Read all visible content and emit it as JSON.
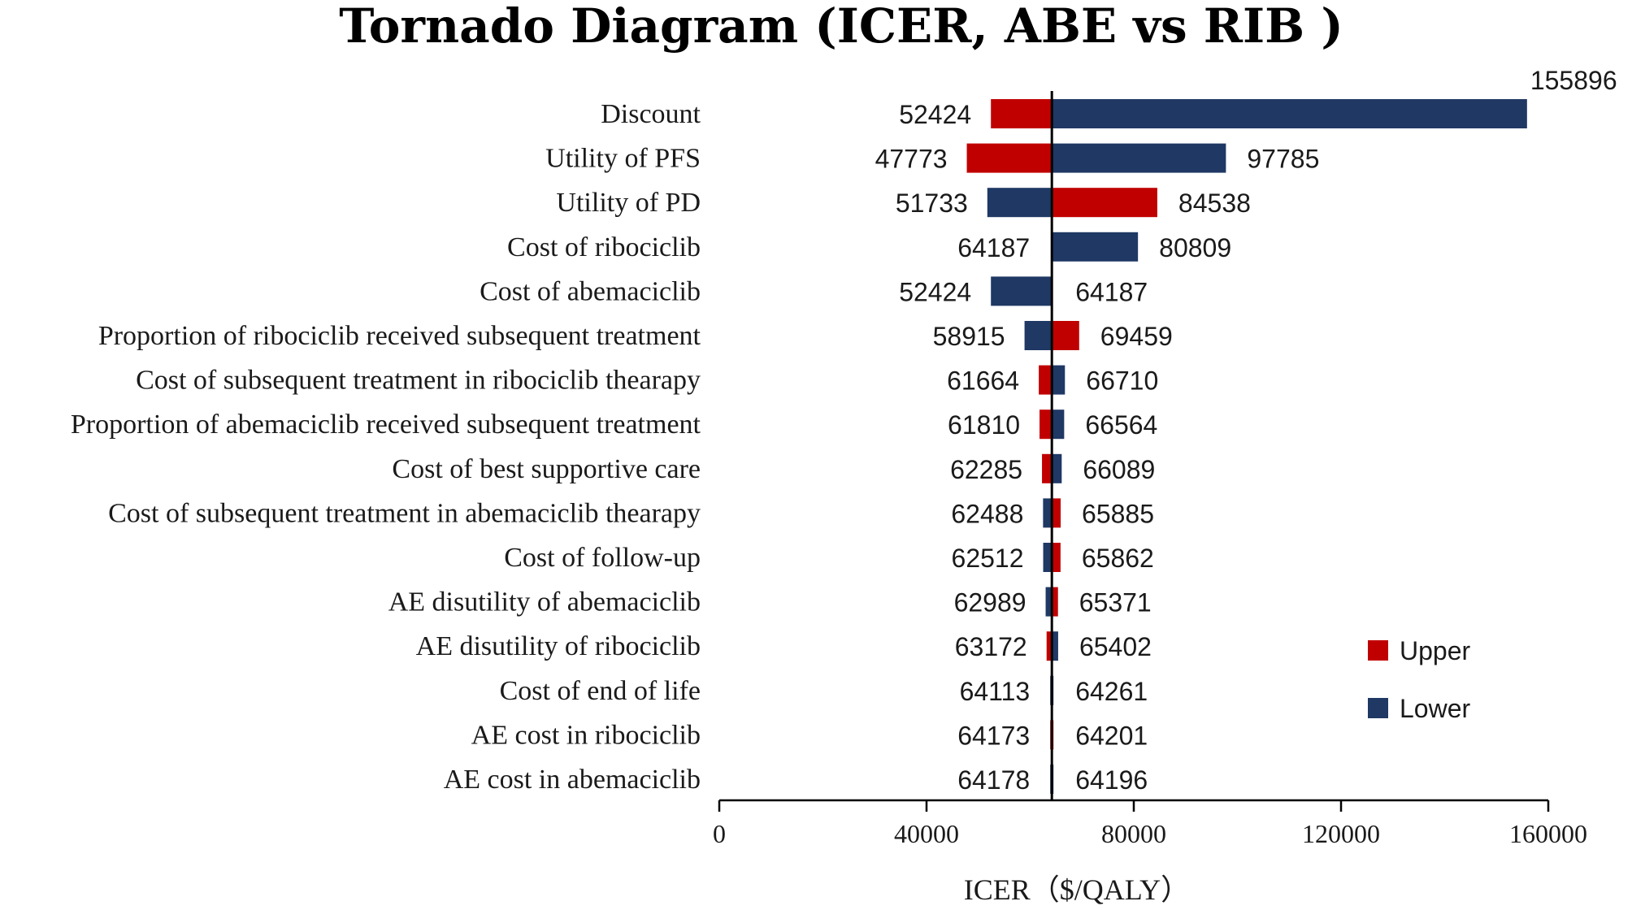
{
  "chart_data": {
    "type": "tornado",
    "title": "Tornado Diagram (ICER,  ABE vs RIB )",
    "xlabel": "ICER（$/QALY）",
    "ylabel": "",
    "xlim": [
      0,
      160000
    ],
    "xticks": [
      "0",
      "40000",
      "80000",
      "120000",
      "160000"
    ],
    "xtick_values": [
      0,
      40000,
      80000,
      120000,
      160000
    ],
    "base_value": 64187,
    "legend": {
      "position": "right",
      "entries": [
        {
          "key": "upper",
          "label": "Upper",
          "color": "#c00000"
        },
        {
          "key": "lower",
          "label": "Lower",
          "color": "#1f3864"
        }
      ]
    },
    "rows": [
      {
        "parameter": "Discount",
        "left": 52424,
        "right": 155896,
        "left_series": "upper",
        "right_series": "lower"
      },
      {
        "parameter": "Utility of PFS",
        "left": 47773,
        "right": 97785,
        "left_series": "upper",
        "right_series": "lower"
      },
      {
        "parameter": "Utility of PD",
        "left": 51733,
        "right": 84538,
        "left_series": "lower",
        "right_series": "upper"
      },
      {
        "parameter": "Cost of ribociclib",
        "left": 64187,
        "right": 80809,
        "left_series": "upper",
        "right_series": "lower"
      },
      {
        "parameter": "Cost of abemaciclib",
        "left": 52424,
        "right": 64187,
        "left_series": "lower",
        "right_series": "upper"
      },
      {
        "parameter": "Proportion of ribociclib received subsequent treatment",
        "left": 58915,
        "right": 69459,
        "left_series": "lower",
        "right_series": "upper"
      },
      {
        "parameter": "Cost of subsequent treatment in ribociclib thearapy",
        "left": 61664,
        "right": 66710,
        "left_series": "upper",
        "right_series": "lower"
      },
      {
        "parameter": "Proportion of abemaciclib received subsequent treatment",
        "left": 61810,
        "right": 66564,
        "left_series": "upper",
        "right_series": "lower"
      },
      {
        "parameter": "Cost of best supportive care",
        "left": 62285,
        "right": 66089,
        "left_series": "upper",
        "right_series": "lower"
      },
      {
        "parameter": "Cost of subsequent treatment in abemaciclib thearapy",
        "left": 62488,
        "right": 65885,
        "left_series": "lower",
        "right_series": "upper"
      },
      {
        "parameter": "Cost of follow-up",
        "left": 62512,
        "right": 65862,
        "left_series": "lower",
        "right_series": "upper"
      },
      {
        "parameter": "AE disutility of abemaciclib",
        "left": 62989,
        "right": 65371,
        "left_series": "lower",
        "right_series": "upper"
      },
      {
        "parameter": "AE disutility of ribociclib",
        "left": 63172,
        "right": 65402,
        "left_series": "upper",
        "right_series": "lower"
      },
      {
        "parameter": "Cost of end of life",
        "left": 64113,
        "right": 64261,
        "left_series": "lower",
        "right_series": "upper"
      },
      {
        "parameter": "AE cost in ribociclib",
        "left": 64173,
        "right": 64201,
        "left_series": "upper",
        "right_series": "lower"
      },
      {
        "parameter": "AE cost in abemaciclib",
        "left": 64178,
        "right": 64196,
        "left_series": "lower",
        "right_series": "upper"
      }
    ]
  }
}
